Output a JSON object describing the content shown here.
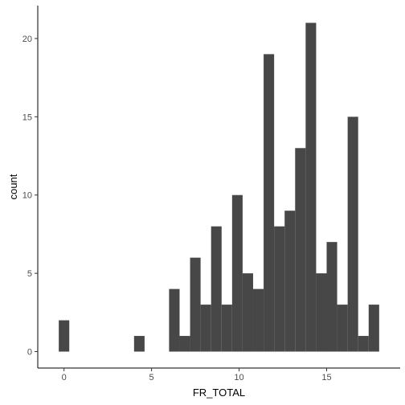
{
  "chart_data": {
    "type": "bar",
    "chart_subtype": "histogram",
    "title": "",
    "xlabel": "FR_TOTAL",
    "ylabel": "count",
    "bar_color": "#474747",
    "axis_color": "#000000",
    "tick_label_color": "#4d4d4d",
    "grid": false,
    "legend": "none",
    "xlim": [
      -1.5,
      19.2
    ],
    "ylim": [
      -1.05,
      22.1
    ],
    "x_ticks": [
      0,
      5,
      10,
      15
    ],
    "x_tick_labels": [
      "0",
      "5",
      "10",
      "15"
    ],
    "y_ticks": [
      0,
      5,
      10,
      15,
      20
    ],
    "y_tick_labels": [
      "0",
      "5",
      "10",
      "15",
      "20"
    ],
    "bin_width": 0.6,
    "bins": [
      {
        "start": -0.3,
        "end": 0.3,
        "count": 2
      },
      {
        "start": 4.0,
        "end": 4.6,
        "count": 1
      },
      {
        "start": 6.0,
        "end": 6.6,
        "count": 4
      },
      {
        "start": 6.6,
        "end": 7.2,
        "count": 1
      },
      {
        "start": 7.2,
        "end": 7.8,
        "count": 6
      },
      {
        "start": 7.8,
        "end": 8.4,
        "count": 3
      },
      {
        "start": 8.4,
        "end": 9.0,
        "count": 8
      },
      {
        "start": 9.0,
        "end": 9.6,
        "count": 3
      },
      {
        "start": 9.6,
        "end": 10.2,
        "count": 10
      },
      {
        "start": 10.2,
        "end": 10.8,
        "count": 5
      },
      {
        "start": 10.8,
        "end": 11.4,
        "count": 4
      },
      {
        "start": 11.4,
        "end": 12.0,
        "count": 19
      },
      {
        "start": 12.0,
        "end": 12.6,
        "count": 8
      },
      {
        "start": 12.6,
        "end": 13.2,
        "count": 9
      },
      {
        "start": 13.2,
        "end": 13.8,
        "count": 13
      },
      {
        "start": 13.8,
        "end": 14.4,
        "count": 21
      },
      {
        "start": 14.4,
        "end": 15.0,
        "count": 5
      },
      {
        "start": 15.0,
        "end": 15.6,
        "count": 7
      },
      {
        "start": 15.6,
        "end": 16.2,
        "count": 3
      },
      {
        "start": 16.2,
        "end": 16.8,
        "count": 15
      },
      {
        "start": 16.8,
        "end": 17.4,
        "count": 1
      },
      {
        "start": 17.4,
        "end": 18.0,
        "count": 3
      }
    ]
  }
}
